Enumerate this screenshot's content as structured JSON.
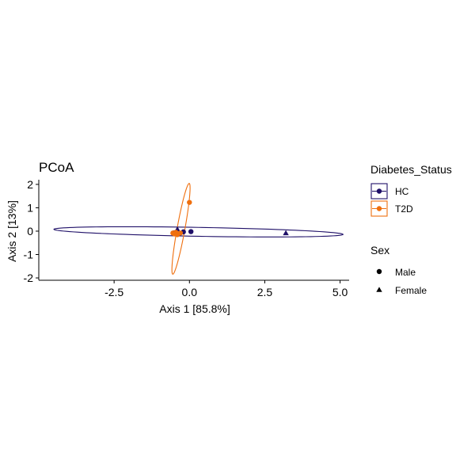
{
  "chart_data": {
    "type": "scatter",
    "title": "PCoA",
    "xlabel": "Axis 1 [85.8%]",
    "ylabel": "Axis 2 [13%]",
    "xlim": [
      -5.0,
      5.3
    ],
    "ylim": [
      -2.1,
      2.2
    ],
    "x_ticks": [
      -2.5,
      0.0,
      2.5,
      5.0
    ],
    "x_tick_labels": [
      "-2.5",
      "0.0",
      "2.5",
      "5.0"
    ],
    "y_ticks": [
      -2,
      -1,
      0,
      1,
      2
    ],
    "y_tick_labels": [
      "-2",
      "-1",
      "0",
      "1",
      "2"
    ],
    "grid": false,
    "legend_placement": "right",
    "color_legend": {
      "title": "Diabetes_Status",
      "entries": [
        {
          "label": "HC",
          "color": "#1f1068"
        },
        {
          "label": "T2D",
          "color": "#ef6f0e"
        }
      ]
    },
    "shape_legend": {
      "title": "Sex",
      "entries": [
        {
          "label": "Male",
          "shape": "circle"
        },
        {
          "label": "Female",
          "shape": "triangle"
        }
      ]
    },
    "series": [
      {
        "name": "HC",
        "color": "#1f1068",
        "points": [
          {
            "x": 3.2,
            "y": -0.08,
            "shape": "triangle"
          },
          {
            "x": -0.4,
            "y": 0.08,
            "shape": "triangle"
          },
          {
            "x": -0.2,
            "y": -0.03,
            "shape": "circle"
          },
          {
            "x": 0.05,
            "y": -0.02,
            "shape": "circle"
          },
          {
            "x": -0.5,
            "y": -0.07,
            "shape": "circle"
          }
        ],
        "ellipse": {
          "cx": 0.3,
          "cy": -0.03,
          "rx": 4.8,
          "ry": 0.19,
          "angle_deg": -1.3
        }
      },
      {
        "name": "T2D",
        "color": "#ef6f0e",
        "points": [
          {
            "x": 0.0,
            "y": 1.23,
            "shape": "circle"
          },
          {
            "x": -0.45,
            "y": -0.05,
            "shape": "circle"
          },
          {
            "x": -0.5,
            "y": -0.12,
            "shape": "circle"
          },
          {
            "x": -0.4,
            "y": -0.15,
            "shape": "circle"
          },
          {
            "x": -0.3,
            "y": -0.08,
            "shape": "circle"
          },
          {
            "x": -0.55,
            "y": -0.08,
            "shape": "circle"
          }
        ],
        "ellipse": {
          "cx": -0.28,
          "cy": 0.1,
          "rx": 1.96,
          "ry": 0.13,
          "angle_deg": 82
        }
      }
    ]
  }
}
